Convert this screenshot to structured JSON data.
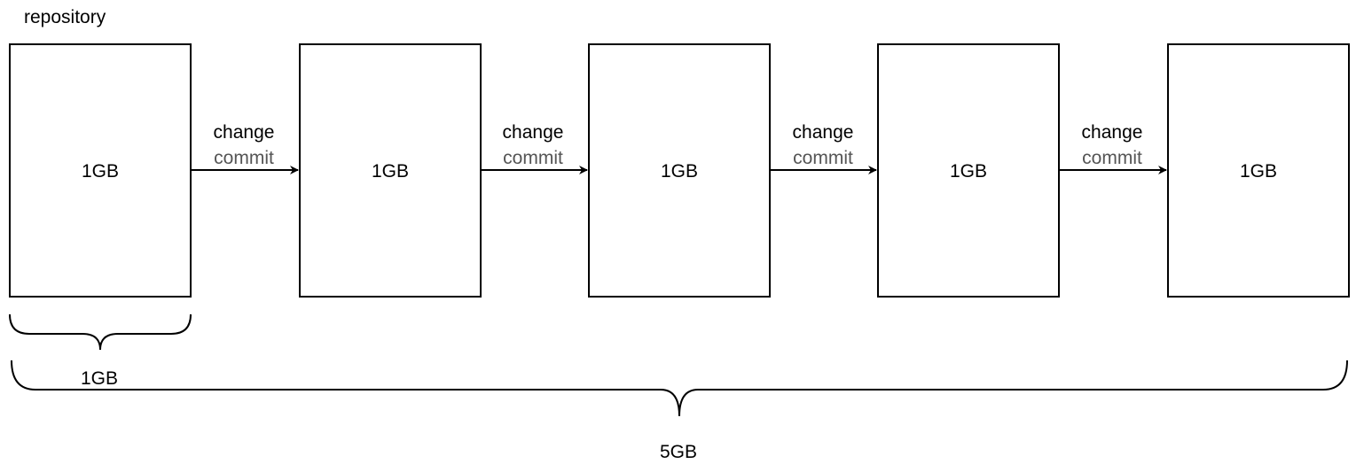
{
  "diagram": {
    "title": "repository",
    "boxes": [
      {
        "label": "1GB"
      },
      {
        "label": "1GB"
      },
      {
        "label": "1GB"
      },
      {
        "label": "1GB"
      },
      {
        "label": "1GB"
      }
    ],
    "arrows": [
      {
        "top_label": "change",
        "bottom_label": "commit"
      },
      {
        "top_label": "change",
        "bottom_label": "commit"
      },
      {
        "top_label": "change",
        "bottom_label": "commit"
      },
      {
        "top_label": "change",
        "bottom_label": "commit"
      }
    ],
    "single_brace_label": "1GB",
    "total_brace_label": "5GB",
    "colors": {
      "stroke": "#000000",
      "text": "#000000",
      "commit_text": "#555555",
      "background": "#ffffff"
    }
  }
}
